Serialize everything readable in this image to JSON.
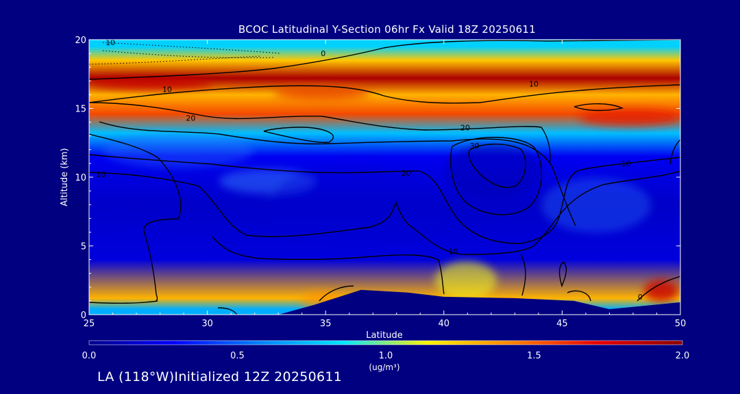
{
  "chart_data": {
    "type": "heatmap",
    "title": "BCOC Latitudinal Y-Section 06hr  Fx Valid 18Z 20250611",
    "xlabel": "Latitude",
    "ylabel": "Altitude (km)",
    "xlim": [
      25,
      50
    ],
    "ylim": [
      0,
      20
    ],
    "x_ticks": [
      "25",
      "30",
      "35",
      "40",
      "45",
      "50"
    ],
    "y_ticks": [
      "0",
      "5",
      "10",
      "15",
      "20"
    ],
    "colorbar": {
      "range": [
        0.0,
        2.0
      ],
      "tick_labels": [
        "0.0",
        "0.5",
        "1.0",
        "1.5",
        "2.0"
      ],
      "unit": "(ug/m³)",
      "colors": [
        "#00008c",
        "#0000ff",
        "#0080ff",
        "#00e5ff",
        "#fff200",
        "#ff7f00",
        "#e60000",
        "#8b0000"
      ]
    },
    "color_field": {
      "description_units": "ug/m3",
      "bands": [
        {
          "alt": 19.5,
          "value": 0.8
        },
        {
          "alt": 18.5,
          "value": 1.25
        },
        {
          "alt": 17.2,
          "value": 1.9
        },
        {
          "alt": 16.0,
          "value": 1.3
        },
        {
          "alt": 14.6,
          "value": 1.55
        },
        {
          "alt": 13.2,
          "value": 0.75
        },
        {
          "alt": 11.5,
          "value": 0.25
        },
        {
          "alt": 8.0,
          "value": 0.15
        },
        {
          "alt": 4.0,
          "value": 0.2
        },
        {
          "alt": 1.2,
          "value": 1.3
        },
        {
          "alt": 0.4,
          "value": 0.7
        }
      ]
    },
    "terrain_km": [
      {
        "lat": 25,
        "alt": 0.0
      },
      {
        "lat": 33,
        "alt": 0.0
      },
      {
        "lat": 34.5,
        "alt": 0.7
      },
      {
        "lat": 36.5,
        "alt": 1.8
      },
      {
        "lat": 38.5,
        "alt": 1.6
      },
      {
        "lat": 40,
        "alt": 1.3
      },
      {
        "lat": 43,
        "alt": 1.2
      },
      {
        "lat": 45.5,
        "alt": 1.0
      },
      {
        "lat": 47,
        "alt": 0.4
      },
      {
        "lat": 50,
        "alt": 0.9
      }
    ],
    "contour_labels": [
      {
        "text": "10",
        "lat": 25.9,
        "alt": 19.6
      },
      {
        "text": "0",
        "lat": 34.9,
        "alt": 18.8
      },
      {
        "text": "10",
        "lat": 28.3,
        "alt": 16.2
      },
      {
        "text": "20",
        "lat": 29.3,
        "alt": 14.1
      },
      {
        "text": "10",
        "lat": 43.8,
        "alt": 16.6
      },
      {
        "text": "20",
        "lat": 40.9,
        "alt": 13.4
      },
      {
        "text": "30",
        "lat": 41.3,
        "alt": 12.1
      },
      {
        "text": "20",
        "lat": 38.4,
        "alt": 10.1
      },
      {
        "text": "10",
        "lat": 47.7,
        "alt": 10.8
      },
      {
        "text": "10",
        "lat": 25.5,
        "alt": 10.0
      },
      {
        "text": "10",
        "lat": 40.4,
        "alt": 4.4
      },
      {
        "text": "0",
        "lat": 48.3,
        "alt": 1.1
      }
    ]
  },
  "footer": "LA (118°W)Initialized 12Z 20250611"
}
